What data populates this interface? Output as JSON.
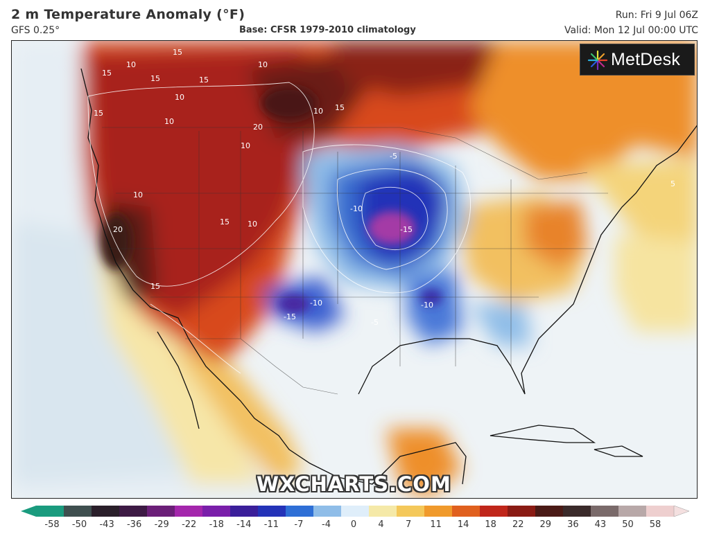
{
  "header": {
    "title": "2 m Temperature Anomaly (°F)",
    "model": "GFS 0.25°",
    "base": "Base: CFSR 1979-2010 climatology",
    "run": "Run: Fri 9 Jul 06Z",
    "valid": "Valid: Mon 12 Jul 00:00 UTC"
  },
  "brand": {
    "logo_text": "MetDesk",
    "logo_icon": "metdesk-starburst-icon",
    "watermark": "WXCHARTS.COM"
  },
  "map": {
    "region": "North America",
    "contour_labels": [
      {
        "text": "15",
        "region": "pacific-northwest"
      },
      {
        "text": "10",
        "region": "northern-rockies"
      },
      {
        "text": "20",
        "region": "northern-plains-canada"
      },
      {
        "text": "20",
        "region": "california"
      },
      {
        "text": "-5",
        "region": "great-lakes"
      },
      {
        "text": "-10",
        "region": "central-plains"
      },
      {
        "text": "-15",
        "region": "central-plains"
      },
      {
        "text": "-15",
        "region": "new-mexico"
      },
      {
        "text": "-10",
        "region": "new-mexico"
      },
      {
        "text": "-5",
        "region": "texas"
      },
      {
        "text": "5",
        "region": "atlantic"
      },
      {
        "text": "-10",
        "region": "arkansas"
      }
    ],
    "contour_labels_visible": [
      "15",
      "15",
      "15",
      "10",
      "15",
      "10",
      "20",
      "20",
      "10",
      "15",
      "10",
      "10",
      "15",
      "15",
      "10",
      "10",
      "-5",
      "-10",
      "-15",
      "-15",
      "-10",
      "-5",
      "5",
      "-10",
      "15",
      "10"
    ]
  },
  "colorbar": {
    "ticks": [
      "-58",
      "-50",
      "-43",
      "-36",
      "-29",
      "-22",
      "-18",
      "-14",
      "-11",
      "-7",
      "-4",
      "0",
      "4",
      "7",
      "11",
      "14",
      "18",
      "22",
      "29",
      "36",
      "43",
      "50",
      "58"
    ],
    "colors": [
      "#1a9b7e",
      "#3f4f4f",
      "#2a1f2a",
      "#3d1a44",
      "#6b1f78",
      "#a426ac",
      "#7a1faa",
      "#3b1f9a",
      "#2433b8",
      "#2e6fd6",
      "#8fbde8",
      "#dfeefa",
      "#f5e9a8",
      "#f4c85a",
      "#f09a2c",
      "#e0601e",
      "#c0261a",
      "#8a1b14",
      "#4a1a16",
      "#3a2a2a",
      "#7a6a6a",
      "#b8a8a8",
      "#eecfcf"
    ]
  }
}
